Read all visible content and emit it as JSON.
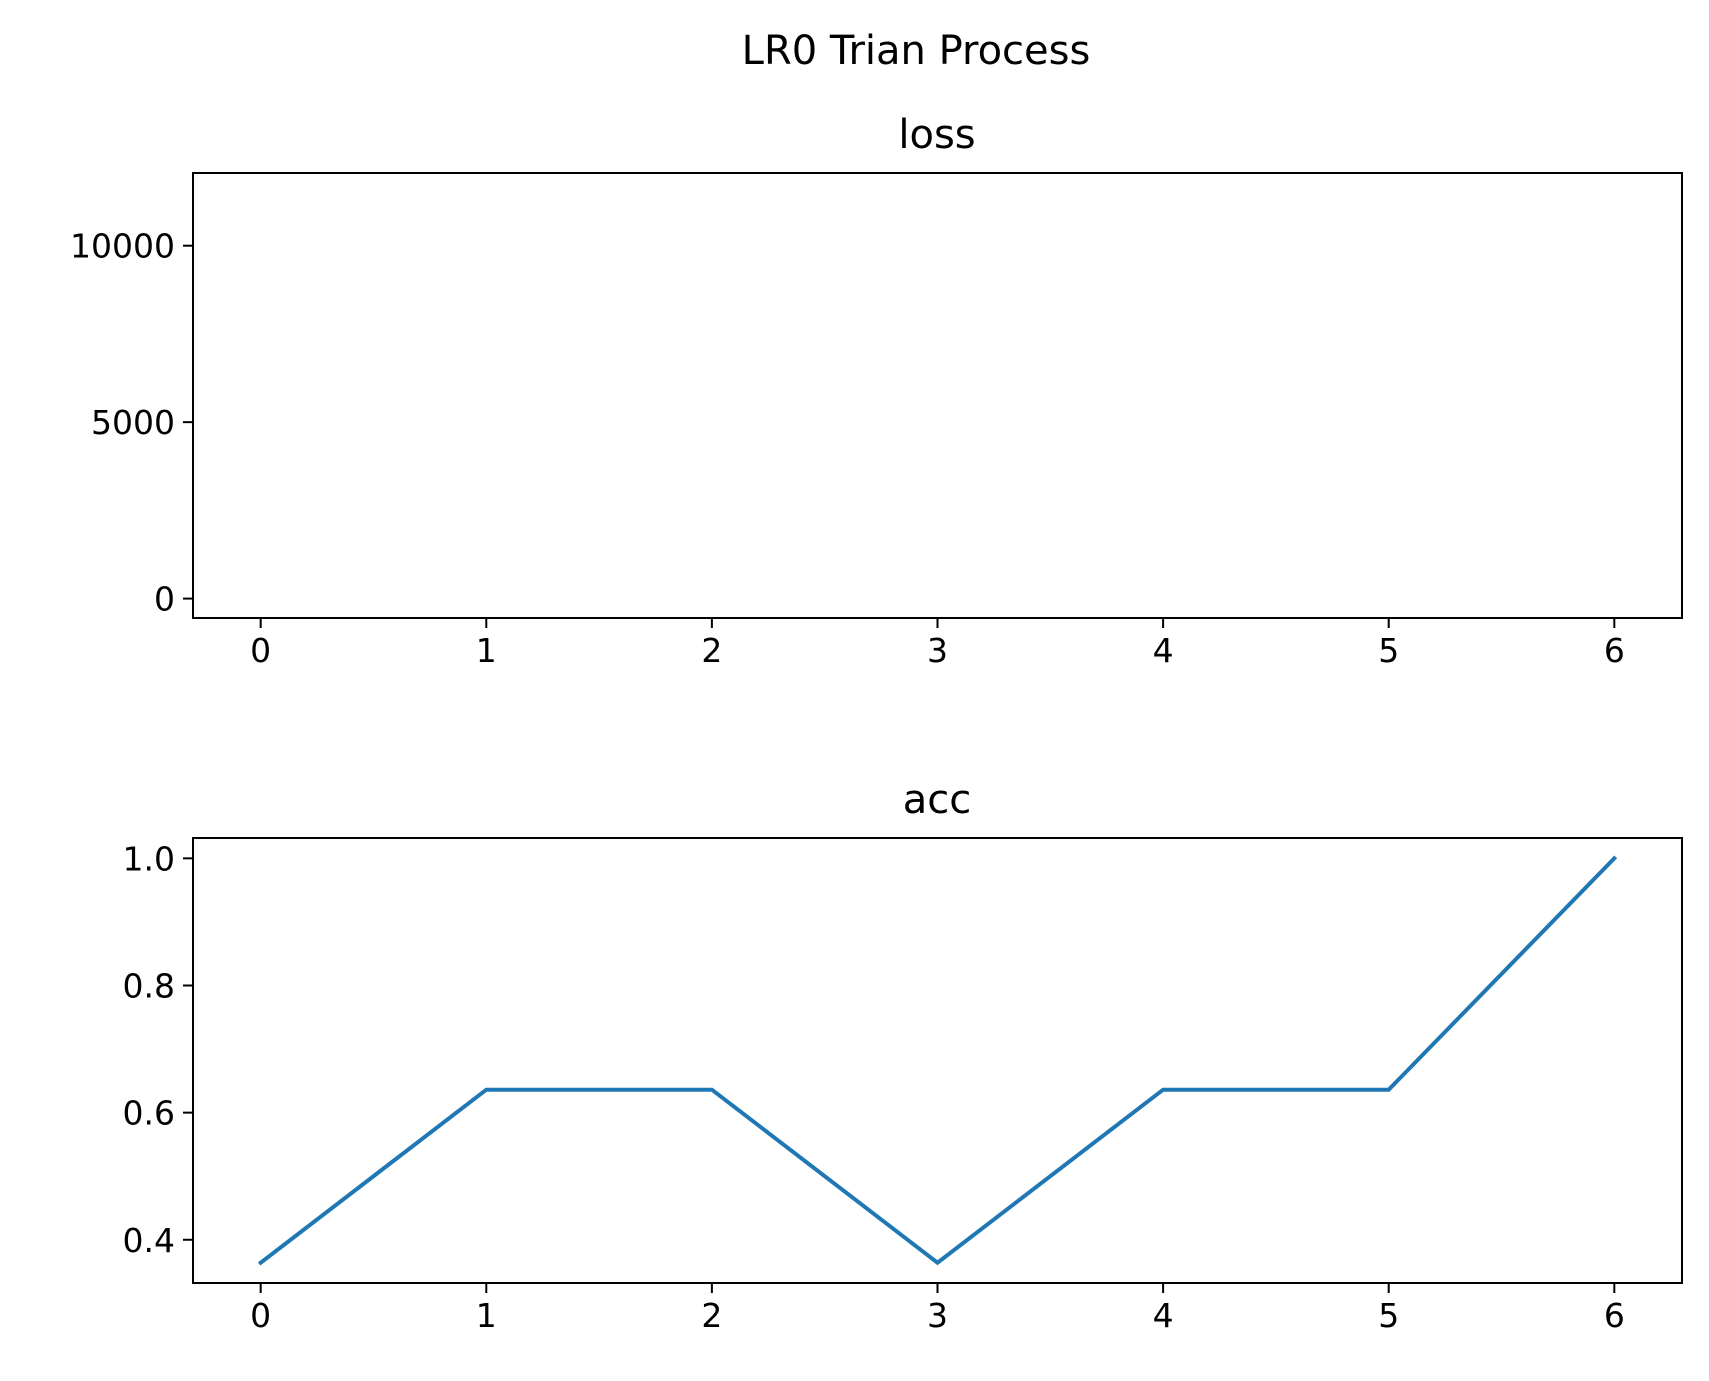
{
  "figure": {
    "suptitle": "LR0 Trian Process",
    "background_color": "#ffffff"
  },
  "chart_data": [
    {
      "type": "line",
      "title": "loss",
      "xlabel": "",
      "ylabel": "",
      "x_ticks": [
        0,
        1,
        2,
        3,
        4,
        5,
        6
      ],
      "y_ticks": [
        0,
        5000,
        10000
      ],
      "y_tick_labels": [
        "0",
        "5000",
        "10000"
      ],
      "xlim": [
        -0.3,
        6.3
      ],
      "ylim": [
        -550,
        12060
      ],
      "grid": false,
      "legend": "none",
      "series": [
        {
          "x": [],
          "y": [],
          "color": "#1f77b4"
        }
      ]
    },
    {
      "type": "line",
      "title": "acc",
      "xlabel": "",
      "ylabel": "",
      "x_ticks": [
        0,
        1,
        2,
        3,
        4,
        5,
        6
      ],
      "y_ticks": [
        0.4,
        0.6,
        0.8,
        1.0
      ],
      "y_tick_labels": [
        "0.4",
        "0.6",
        "0.8",
        "1.0"
      ],
      "xlim": [
        -0.3,
        6.3
      ],
      "ylim": [
        0.332,
        1.032
      ],
      "grid": false,
      "legend": "none",
      "series": [
        {
          "x": [
            0,
            1,
            2,
            3,
            4,
            5,
            6
          ],
          "y": [
            0.364,
            0.636,
            0.636,
            0.364,
            0.636,
            0.636,
            1.0
          ],
          "color": "#1f77b4"
        }
      ]
    }
  ]
}
